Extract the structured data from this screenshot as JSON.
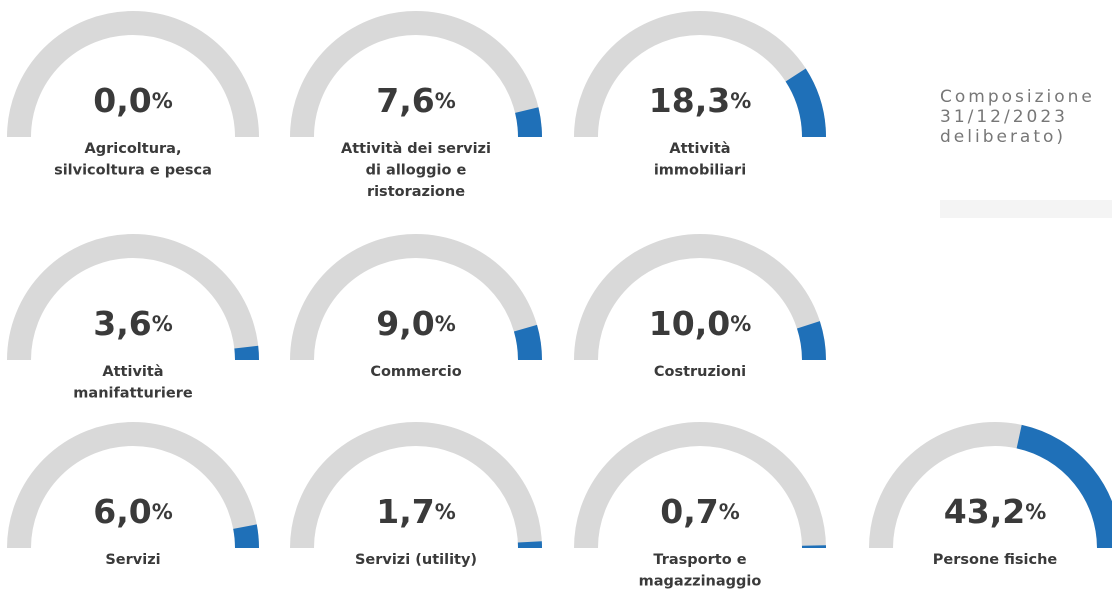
{
  "chart_data": [
    {
      "type": "gauge",
      "value": 0.0,
      "value_label": "0,0",
      "unit": "%",
      "label": [
        "Agricoltura,",
        "silvicoltura e pesca"
      ],
      "ylim": [
        0,
        100
      ],
      "color": "#1f70b8"
    },
    {
      "type": "gauge",
      "value": 7.6,
      "value_label": "7,6",
      "unit": "%",
      "label": [
        "Attività dei servizi",
        "di alloggio e",
        "ristorazione"
      ],
      "ylim": [
        0,
        100
      ],
      "color": "#1f70b8"
    },
    {
      "type": "gauge",
      "value": 18.3,
      "value_label": "18,3",
      "unit": "%",
      "label": [
        "Attività",
        "immobiliari"
      ],
      "ylim": [
        0,
        100
      ],
      "color": "#1f70b8"
    },
    {
      "type": "gauge",
      "value": 3.6,
      "value_label": "3,6",
      "unit": "%",
      "label": [
        "Attività",
        "manifatturiere"
      ],
      "ylim": [
        0,
        100
      ],
      "color": "#1f70b8"
    },
    {
      "type": "gauge",
      "value": 9.0,
      "value_label": "9,0",
      "unit": "%",
      "label": [
        "Commercio"
      ],
      "ylim": [
        0,
        100
      ],
      "color": "#1f70b8"
    },
    {
      "type": "gauge",
      "value": 10.0,
      "value_label": "10,0",
      "unit": "%",
      "label": [
        "Costruzioni"
      ],
      "ylim": [
        0,
        100
      ],
      "color": "#1f70b8"
    },
    {
      "type": "gauge",
      "value": 6.0,
      "value_label": "6,0",
      "unit": "%",
      "label": [
        "Servizi"
      ],
      "ylim": [
        0,
        100
      ],
      "color": "#1f70b8"
    },
    {
      "type": "gauge",
      "value": 1.7,
      "value_label": "1,7",
      "unit": "%",
      "label": [
        "Servizi (utility)"
      ],
      "ylim": [
        0,
        100
      ],
      "color": "#1f70b8"
    },
    {
      "type": "gauge",
      "value": 0.7,
      "value_label": "0,7",
      "unit": "%",
      "label": [
        "Trasporto e",
        "magazzinaggio"
      ],
      "ylim": [
        0,
        100
      ],
      "color": "#1f70b8"
    },
    {
      "type": "gauge",
      "value": 43.2,
      "value_label": "43,2",
      "unit": "%",
      "label": [
        "Persone fisiche"
      ],
      "ylim": [
        0,
        100
      ],
      "color": "#1f70b8"
    }
  ],
  "side_text": [
    "Composizione",
    "31/12/2023",
    "deliberato)"
  ]
}
